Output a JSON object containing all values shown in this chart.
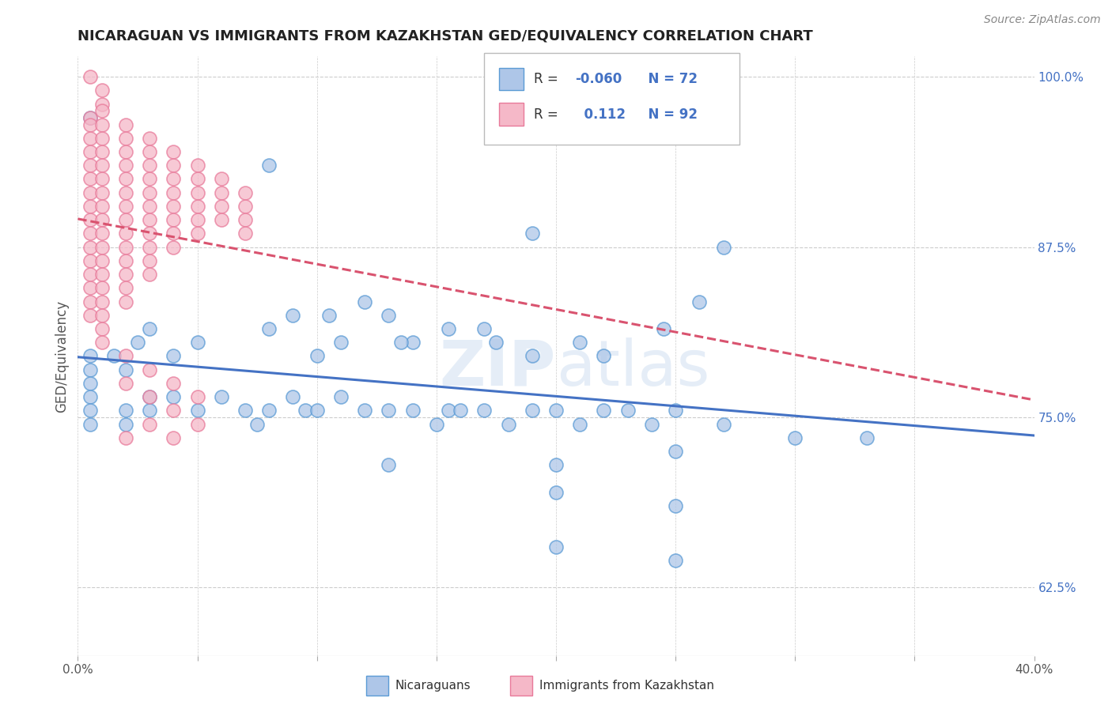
{
  "title": "NICARAGUAN VS IMMIGRANTS FROM KAZAKHSTAN GED/EQUIVALENCY CORRELATION CHART",
  "source": "Source: ZipAtlas.com",
  "ylabel_text": "GED/Equivalency",
  "xmin": 0.0,
  "xmax": 0.4,
  "ymin": 0.575,
  "ymax": 1.015,
  "xticks": [
    0.0,
    0.05,
    0.1,
    0.15,
    0.2,
    0.25,
    0.3,
    0.35,
    0.4
  ],
  "xticklabels_sparse": {
    "0": "0.0%",
    "8": "40.0%"
  },
  "yticks": [
    0.625,
    0.75,
    0.875,
    1.0
  ],
  "yticklabels": [
    "62.5%",
    "75.0%",
    "87.5%",
    "100.0%"
  ],
  "legend_blue_label": "Nicaraguans",
  "legend_pink_label": "Immigrants from Kazakhstan",
  "blue_color": "#aec6e8",
  "pink_color": "#f5b8c8",
  "blue_edge_color": "#5b9bd5",
  "pink_edge_color": "#e87a9a",
  "blue_line_color": "#4472c4",
  "pink_line_color": "#d9536f",
  "watermark_zip": "ZIP",
  "watermark_atlas": "atlas",
  "blue_scatter": [
    [
      0.005,
      0.97
    ],
    [
      0.08,
      0.935
    ],
    [
      0.19,
      0.885
    ],
    [
      0.27,
      0.875
    ],
    [
      0.26,
      0.835
    ],
    [
      0.245,
      0.815
    ],
    [
      0.21,
      0.805
    ],
    [
      0.22,
      0.795
    ],
    [
      0.17,
      0.815
    ],
    [
      0.175,
      0.805
    ],
    [
      0.19,
      0.795
    ],
    [
      0.155,
      0.815
    ],
    [
      0.14,
      0.805
    ],
    [
      0.13,
      0.825
    ],
    [
      0.135,
      0.805
    ],
    [
      0.12,
      0.835
    ],
    [
      0.11,
      0.805
    ],
    [
      0.105,
      0.825
    ],
    [
      0.1,
      0.795
    ],
    [
      0.09,
      0.825
    ],
    [
      0.08,
      0.815
    ],
    [
      0.05,
      0.805
    ],
    [
      0.04,
      0.795
    ],
    [
      0.03,
      0.815
    ],
    [
      0.025,
      0.805
    ],
    [
      0.02,
      0.785
    ],
    [
      0.015,
      0.795
    ],
    [
      0.005,
      0.795
    ],
    [
      0.005,
      0.785
    ],
    [
      0.005,
      0.775
    ],
    [
      0.005,
      0.765
    ],
    [
      0.005,
      0.755
    ],
    [
      0.005,
      0.745
    ],
    [
      0.02,
      0.755
    ],
    [
      0.02,
      0.745
    ],
    [
      0.03,
      0.765
    ],
    [
      0.03,
      0.755
    ],
    [
      0.04,
      0.765
    ],
    [
      0.05,
      0.755
    ],
    [
      0.06,
      0.765
    ],
    [
      0.07,
      0.755
    ],
    [
      0.075,
      0.745
    ],
    [
      0.08,
      0.755
    ],
    [
      0.09,
      0.765
    ],
    [
      0.095,
      0.755
    ],
    [
      0.1,
      0.755
    ],
    [
      0.11,
      0.765
    ],
    [
      0.12,
      0.755
    ],
    [
      0.13,
      0.755
    ],
    [
      0.14,
      0.755
    ],
    [
      0.15,
      0.745
    ],
    [
      0.155,
      0.755
    ],
    [
      0.16,
      0.755
    ],
    [
      0.17,
      0.755
    ],
    [
      0.18,
      0.745
    ],
    [
      0.19,
      0.755
    ],
    [
      0.2,
      0.755
    ],
    [
      0.21,
      0.745
    ],
    [
      0.22,
      0.755
    ],
    [
      0.23,
      0.755
    ],
    [
      0.24,
      0.745
    ],
    [
      0.25,
      0.755
    ],
    [
      0.27,
      0.745
    ],
    [
      0.3,
      0.735
    ],
    [
      0.33,
      0.735
    ],
    [
      0.2,
      0.715
    ],
    [
      0.25,
      0.725
    ],
    [
      0.13,
      0.715
    ],
    [
      0.2,
      0.695
    ],
    [
      0.25,
      0.685
    ],
    [
      0.2,
      0.655
    ],
    [
      0.25,
      0.645
    ]
  ],
  "pink_scatter": [
    [
      0.005,
      1.0
    ],
    [
      0.01,
      0.99
    ],
    [
      0.01,
      0.98
    ],
    [
      0.005,
      0.97
    ],
    [
      0.005,
      0.965
    ],
    [
      0.005,
      0.955
    ],
    [
      0.005,
      0.945
    ],
    [
      0.005,
      0.935
    ],
    [
      0.005,
      0.925
    ],
    [
      0.005,
      0.915
    ],
    [
      0.005,
      0.905
    ],
    [
      0.005,
      0.895
    ],
    [
      0.005,
      0.885
    ],
    [
      0.005,
      0.875
    ],
    [
      0.005,
      0.865
    ],
    [
      0.005,
      0.855
    ],
    [
      0.005,
      0.845
    ],
    [
      0.005,
      0.835
    ],
    [
      0.005,
      0.825
    ],
    [
      0.01,
      0.975
    ],
    [
      0.01,
      0.965
    ],
    [
      0.01,
      0.955
    ],
    [
      0.01,
      0.945
    ],
    [
      0.01,
      0.935
    ],
    [
      0.01,
      0.925
    ],
    [
      0.01,
      0.915
    ],
    [
      0.01,
      0.905
    ],
    [
      0.01,
      0.895
    ],
    [
      0.01,
      0.885
    ],
    [
      0.01,
      0.875
    ],
    [
      0.01,
      0.865
    ],
    [
      0.01,
      0.855
    ],
    [
      0.01,
      0.845
    ],
    [
      0.01,
      0.835
    ],
    [
      0.01,
      0.825
    ],
    [
      0.01,
      0.815
    ],
    [
      0.01,
      0.805
    ],
    [
      0.02,
      0.965
    ],
    [
      0.02,
      0.955
    ],
    [
      0.02,
      0.945
    ],
    [
      0.02,
      0.935
    ],
    [
      0.02,
      0.925
    ],
    [
      0.02,
      0.915
    ],
    [
      0.02,
      0.905
    ],
    [
      0.02,
      0.895
    ],
    [
      0.02,
      0.885
    ],
    [
      0.02,
      0.875
    ],
    [
      0.02,
      0.865
    ],
    [
      0.02,
      0.855
    ],
    [
      0.02,
      0.845
    ],
    [
      0.02,
      0.835
    ],
    [
      0.03,
      0.955
    ],
    [
      0.03,
      0.945
    ],
    [
      0.03,
      0.935
    ],
    [
      0.03,
      0.925
    ],
    [
      0.03,
      0.915
    ],
    [
      0.03,
      0.905
    ],
    [
      0.03,
      0.895
    ],
    [
      0.03,
      0.885
    ],
    [
      0.03,
      0.875
    ],
    [
      0.03,
      0.865
    ],
    [
      0.03,
      0.855
    ],
    [
      0.04,
      0.945
    ],
    [
      0.04,
      0.935
    ],
    [
      0.04,
      0.925
    ],
    [
      0.04,
      0.915
    ],
    [
      0.04,
      0.905
    ],
    [
      0.04,
      0.895
    ],
    [
      0.04,
      0.885
    ],
    [
      0.04,
      0.875
    ],
    [
      0.05,
      0.935
    ],
    [
      0.05,
      0.925
    ],
    [
      0.05,
      0.915
    ],
    [
      0.05,
      0.905
    ],
    [
      0.05,
      0.895
    ],
    [
      0.05,
      0.885
    ],
    [
      0.06,
      0.925
    ],
    [
      0.06,
      0.915
    ],
    [
      0.06,
      0.905
    ],
    [
      0.06,
      0.895
    ],
    [
      0.07,
      0.915
    ],
    [
      0.07,
      0.905
    ],
    [
      0.07,
      0.895
    ],
    [
      0.07,
      0.885
    ],
    [
      0.02,
      0.795
    ],
    [
      0.02,
      0.775
    ],
    [
      0.03,
      0.785
    ],
    [
      0.03,
      0.765
    ],
    [
      0.04,
      0.775
    ],
    [
      0.04,
      0.755
    ],
    [
      0.05,
      0.765
    ],
    [
      0.05,
      0.745
    ],
    [
      0.03,
      0.745
    ],
    [
      0.04,
      0.735
    ],
    [
      0.02,
      0.735
    ]
  ]
}
